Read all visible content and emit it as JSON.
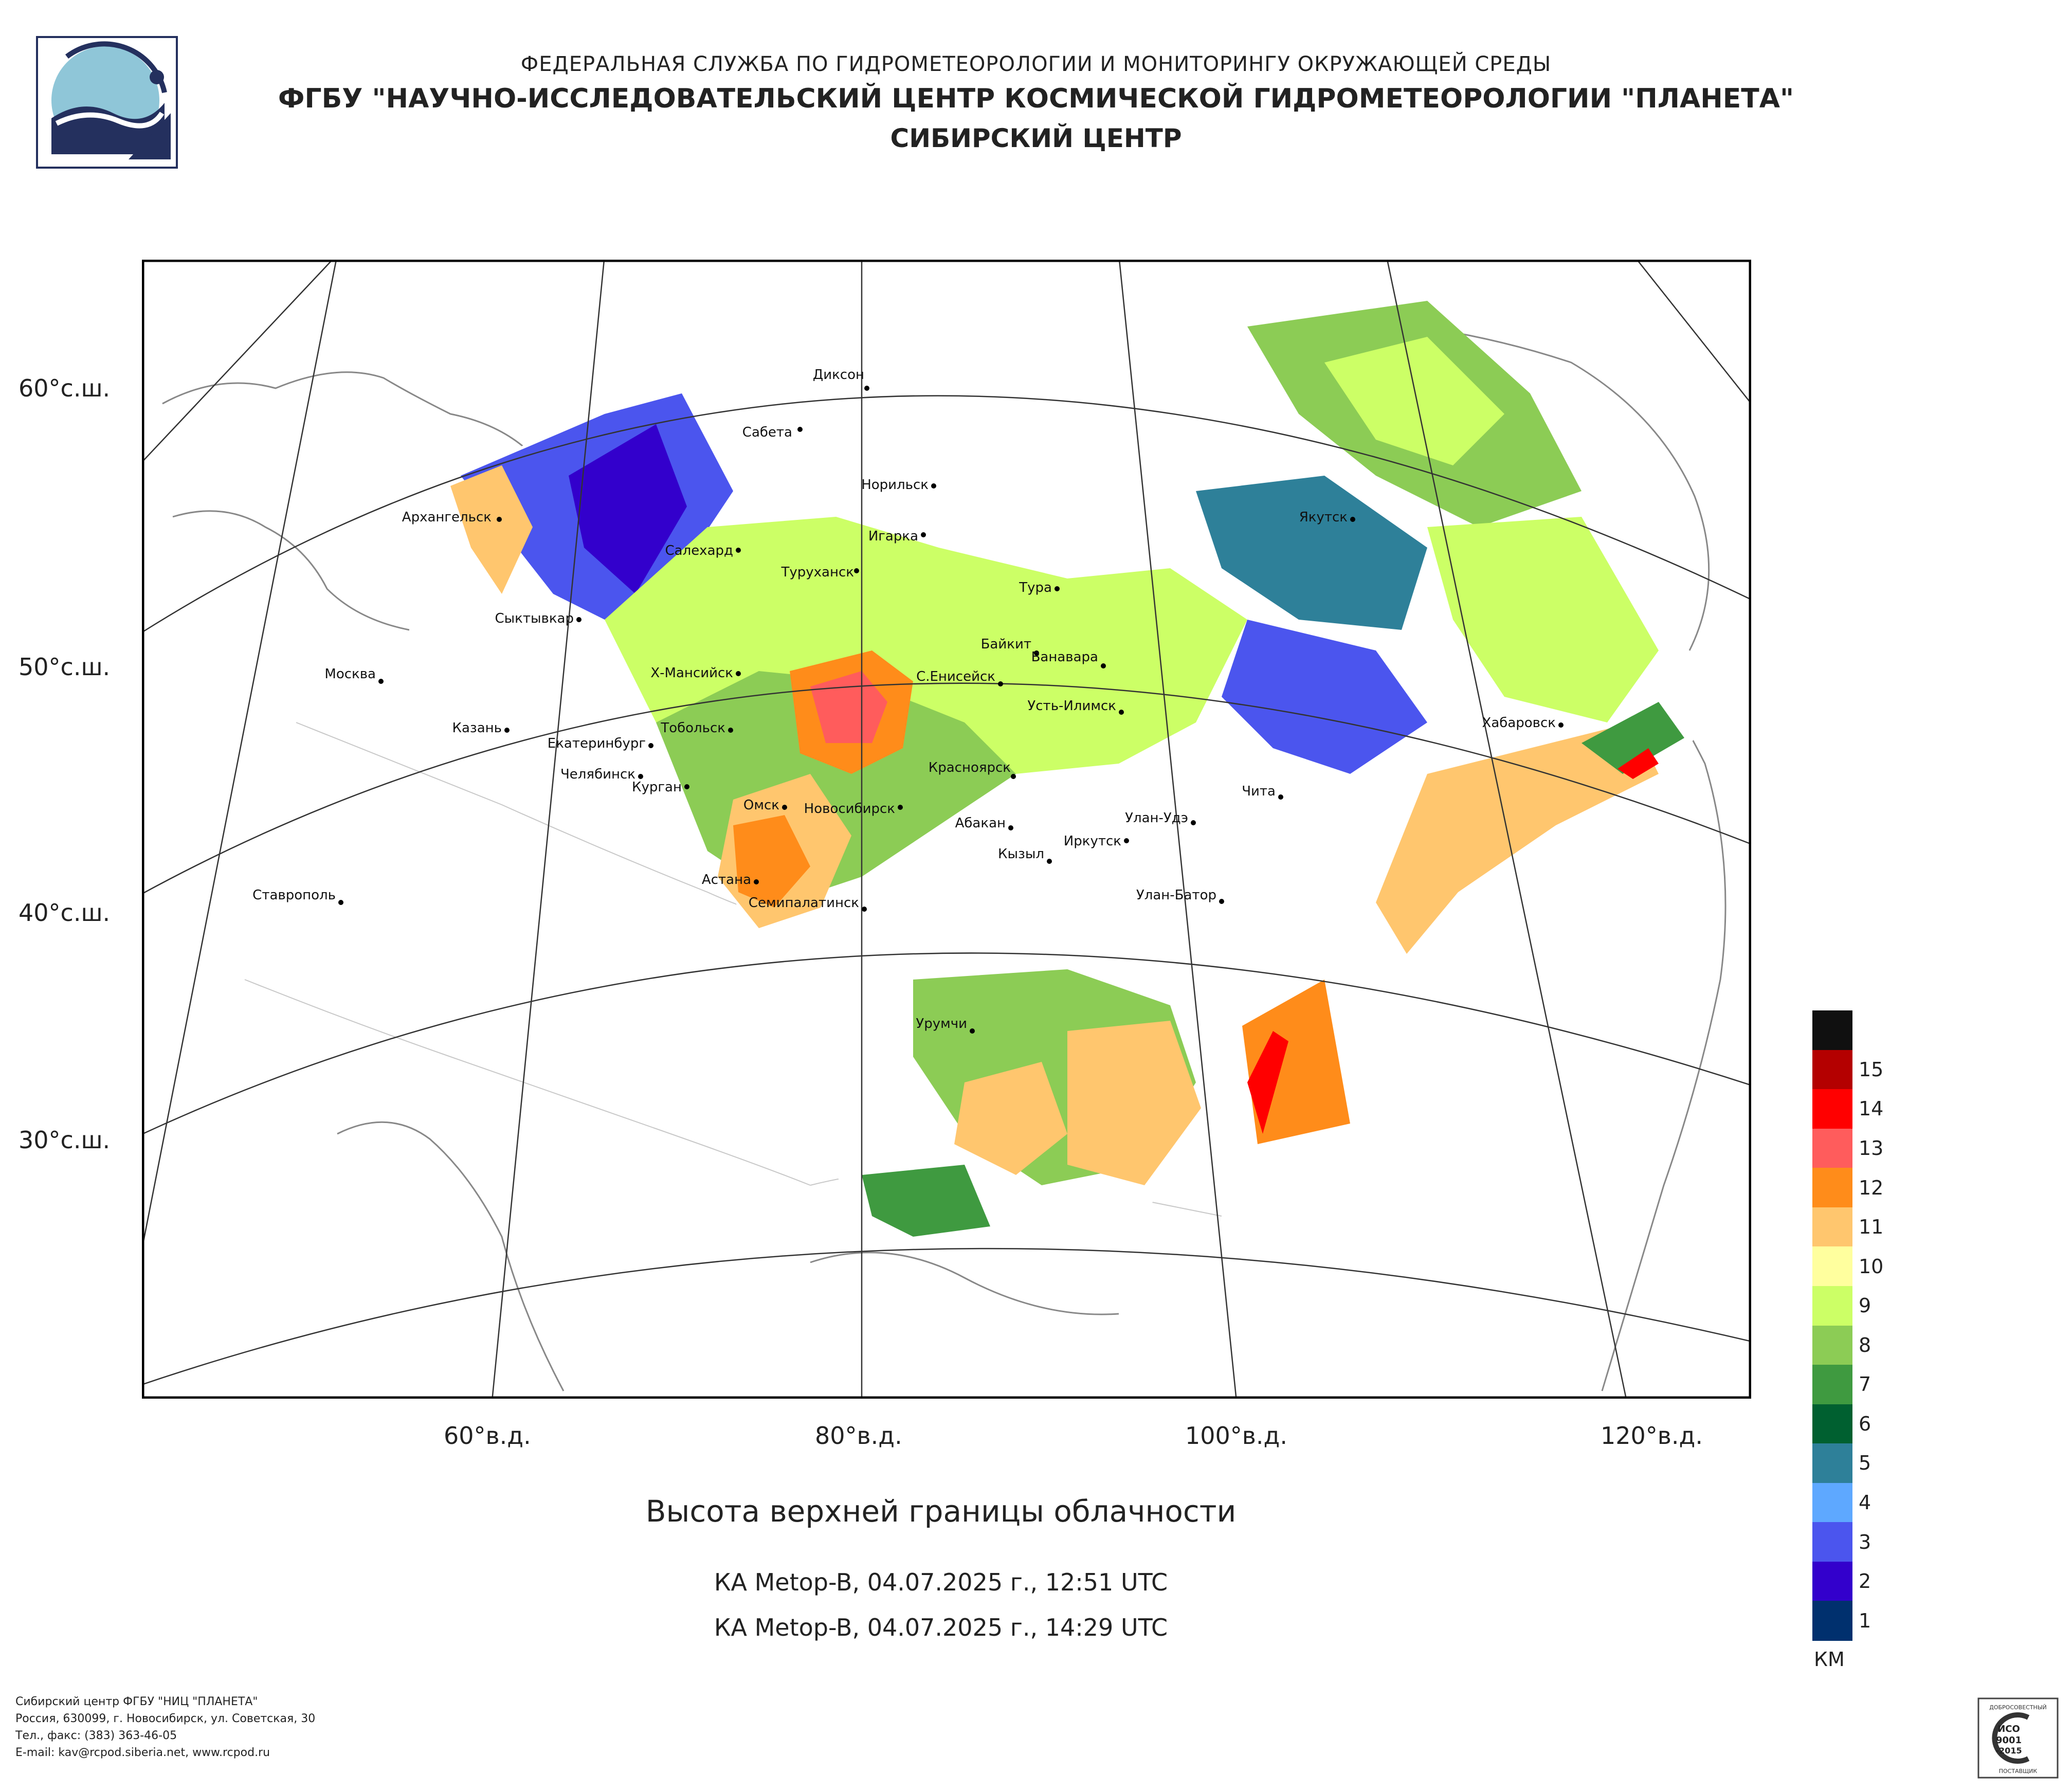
{
  "header": {
    "line1": "ФЕДЕРАЛЬНАЯ СЛУЖБА ПО ГИДРОМЕТЕОРОЛОГИИ И МОНИТОРИНГУ ОКРУЖАЮЩЕЙ СРЕДЫ",
    "line2": "ФГБУ \"НАУЧНО-ИССЛЕДОВАТЕЛЬСКИЙ ЦЕНТР КОСМИЧЕСКОЙ ГИДРОМЕТЕОРОЛОГИИ \"ПЛАНЕТА\"",
    "line3": "СИБИРСКИЙ ЦЕНТР"
  },
  "latitude_labels": [
    "60°с.ш.",
    "50°с.ш.",
    "40°с.ш.",
    "30°с.ш."
  ],
  "longitude_labels": [
    "60°в.д.",
    "80°в.д.",
    "100°в.д.",
    "120°в.д."
  ],
  "cities": [
    "Диксон",
    "Сабета",
    "Норильск",
    "Архангельск",
    "Салехард",
    "Игарка",
    "Туруханск",
    "Тура",
    "Якутск",
    "Сыктывкар",
    "Байкит",
    "Ванавара",
    "Москва",
    "Х-Мансийск",
    "С.Енисейск",
    "Усть-Илимск",
    "Хабаровск",
    "Казань",
    "Тобольск",
    "Екатеринбург",
    "Челябинск",
    "Красноярск",
    "Чита",
    "Курган",
    "Омск",
    "Новосибирск",
    "Абакан",
    "Улан-Удэ",
    "Иркутск",
    "Кызыл",
    "Ставрополь",
    "Астана",
    "Семипалатинск",
    "Улан-Батор",
    "Урумчи"
  ],
  "map_title": "Высота верхней границы облачности",
  "satellite_passes": [
    "КА Metop-B, 04.07.2025 г., 12:51 UTC",
    "КА Metop-B, 04.07.2025 г., 14:29 UTC"
  ],
  "legend": {
    "unit": "КМ",
    "levels": [
      {
        "label": "",
        "color": "#101010"
      },
      {
        "label": "15",
        "color": "#b40000"
      },
      {
        "label": "14",
        "color": "#ff0000"
      },
      {
        "label": "13",
        "color": "#ff5c5c"
      },
      {
        "label": "12",
        "color": "#ff8c1a"
      },
      {
        "label": "11",
        "color": "#ffc66e"
      },
      {
        "label": "10",
        "color": "#ffff9e"
      },
      {
        "label": "9",
        "color": "#ccff66"
      },
      {
        "label": "8",
        "color": "#8ccc55"
      },
      {
        "label": "7",
        "color": "#3f9a40"
      },
      {
        "label": "6",
        "color": "#006030"
      },
      {
        "label": "5",
        "color": "#2e8099"
      },
      {
        "label": "4",
        "color": "#5ea8ff"
      },
      {
        "label": "3",
        "color": "#4b55ee"
      },
      {
        "label": "2",
        "color": "#3300cc"
      },
      {
        "label": "1",
        "color": "#00306e"
      }
    ]
  },
  "footer": [
    "Сибирский центр ФГБУ \"НИЦ \"ПЛАНЕТА\"",
    "Россия, 630099, г. Новосибирск, ул. Советская, 30",
    "Тел., факс: (383) 363-46-05",
    "E-mail: kav@rcpod.siberia.net, www.rcpod.ru"
  ],
  "certificate": {
    "top": "ДОБРОСОВЕСТНЫЙ",
    "line1": "ИСО",
    "line2": "9001",
    "line3": "-2015",
    "bottom": "ПОСТАВЩИК"
  },
  "colors": {
    "logo_light": "#8fc6d8",
    "logo_dark": "#24305e"
  }
}
